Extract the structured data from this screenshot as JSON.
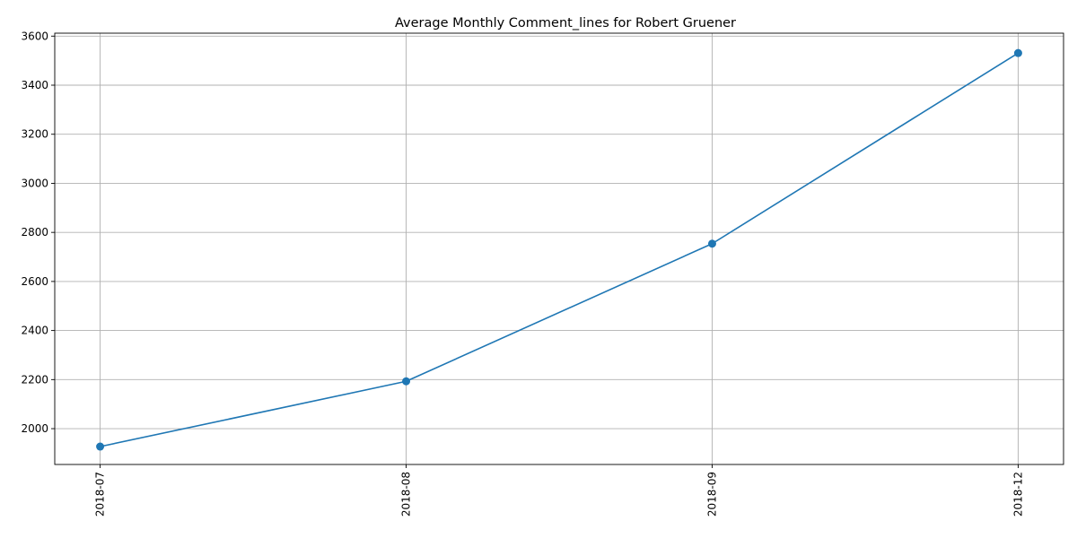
{
  "chart_data": {
    "type": "line",
    "title": "Average Monthly Comment_lines for Robert Gruener",
    "xlabel": "",
    "ylabel": "",
    "categories": [
      "2018-07",
      "2018-08",
      "2018-09",
      "2018-12"
    ],
    "series": [
      {
        "values": [
          1927,
          2193,
          2754,
          3531
        ],
        "color": "#1f77b4",
        "marker": "circle"
      }
    ],
    "ylim": [
      1854,
      3612
    ],
    "yticks": [
      2000,
      2200,
      2400,
      2600,
      2800,
      3000,
      3200,
      3400,
      3600
    ],
    "grid": true,
    "legend": "none",
    "xtick_rotation": "vertical"
  }
}
